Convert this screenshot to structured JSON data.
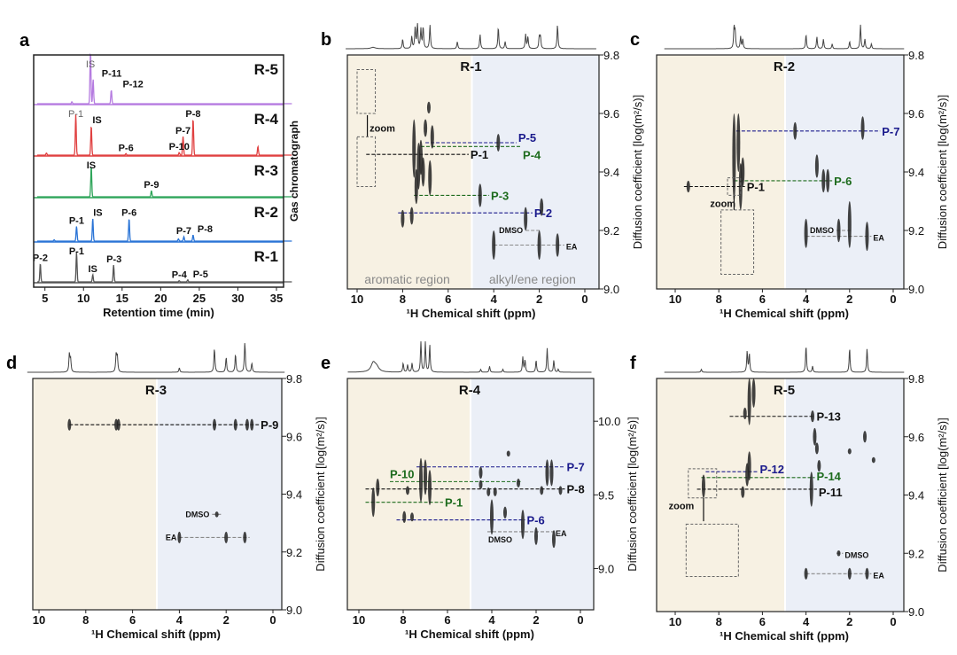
{
  "chart_data": [
    {
      "panel": "a",
      "type": "line",
      "xlabel": "Retention time (min)",
      "ylabel": "Gas chromatograph",
      "xlim": [
        4,
        37
      ],
      "xticks": [
        5,
        10,
        15,
        20,
        25,
        30,
        35
      ],
      "series": [
        {
          "name": "R-5",
          "color": "#b57be0",
          "peaks": [
            [
              10.9,
              1.1,
              "IS"
            ],
            [
              11.25,
              0.5,
              "P-11"
            ],
            [
              13.6,
              0.28,
              "P-12"
            ],
            [
              8.5,
              0.04,
              ""
            ]
          ]
        },
        {
          "name": "R-4",
          "color": "#e04040",
          "peaks": [
            [
              9.0,
              0.8,
              "P-1"
            ],
            [
              11.0,
              0.58,
              "IS"
            ],
            [
              15.5,
              0.03,
              "P-6"
            ],
            [
              22.4,
              0.05,
              "P-10"
            ],
            [
              22.9,
              0.37,
              "P-7"
            ],
            [
              24.2,
              0.72,
              "P-8"
            ],
            [
              32.6,
              0.17,
              ""
            ],
            [
              5.2,
              0.04,
              ""
            ]
          ]
        },
        {
          "name": "R-3",
          "color": "#2fa55a",
          "peaks": [
            [
              11.0,
              0.75,
              "IS"
            ],
            [
              18.8,
              0.15,
              "P-9"
            ]
          ]
        },
        {
          "name": "R-2",
          "color": "#2a74d6",
          "peaks": [
            [
              9.1,
              0.34,
              "P-1"
            ],
            [
              11.2,
              0.52,
              "IS"
            ],
            [
              15.9,
              0.52,
              "P-6"
            ],
            [
              22.3,
              0.05,
              ""
            ],
            [
              23.0,
              0.1,
              "P-7"
            ],
            [
              24.2,
              0.14,
              "P-8"
            ],
            [
              6.2,
              0.03,
              ""
            ]
          ]
        },
        {
          "name": "R-1",
          "color": "#555555",
          "peaks": [
            [
              4.4,
              0.46,
              "P-2"
            ],
            [
              9.1,
              0.74,
              "P-1"
            ],
            [
              11.2,
              0.18,
              "IS"
            ],
            [
              13.9,
              0.42,
              "P-3"
            ],
            [
              22.4,
              0.03,
              "P-4"
            ],
            [
              23.5,
              0.05,
              "P-5"
            ]
          ]
        }
      ]
    },
    {
      "panel": "b",
      "type": "scatter",
      "title": "R-1",
      "xlabel": "¹H Chemical shift (ppm)",
      "ylabel": "Diffusion coefficient [log(m²/s)]",
      "xlim": [
        10.5,
        -0.5
      ],
      "xticks": [
        10,
        8,
        6,
        4,
        2,
        0
      ],
      "ylim": [
        9.0,
        9.8
      ],
      "yticks": [
        "9.0",
        "9.2",
        "9.4",
        "9.6",
        "9.8"
      ],
      "region_labels": [
        "aromatic region",
        "alkyl/ene region"
      ],
      "zoom_label": "zoom",
      "spectrum": [
        [
          9.3,
          0.06
        ],
        [
          8.0,
          0.4
        ],
        [
          7.6,
          0.5
        ],
        [
          7.45,
          0.9
        ],
        [
          7.35,
          1
        ],
        [
          7.2,
          0.8
        ],
        [
          7.1,
          0.9
        ],
        [
          6.8,
          1
        ],
        [
          5.6,
          0.3
        ],
        [
          4.6,
          0.6
        ],
        [
          3.8,
          0.9
        ],
        [
          3.5,
          0.3
        ],
        [
          2.6,
          0.6
        ],
        [
          2.5,
          0.5
        ],
        [
          2.0,
          0.5
        ],
        [
          1.95,
          0.5
        ],
        [
          1.2,
          1
        ]
      ],
      "crosspeaks": [
        [
          8.0,
          9.24,
          0.03
        ],
        [
          7.6,
          9.25,
          0.03
        ],
        [
          7.5,
          9.48,
          0.1
        ],
        [
          7.4,
          9.35,
          0.06
        ],
        [
          7.3,
          9.42,
          0.08
        ],
        [
          7.2,
          9.45,
          0.06
        ],
        [
          7.1,
          9.4,
          0.05
        ],
        [
          7.0,
          9.55,
          0.03
        ],
        [
          6.8,
          9.38,
          0.06
        ],
        [
          6.7,
          9.52,
          0.04
        ],
        [
          6.85,
          9.62,
          0.02
        ],
        [
          4.6,
          9.32,
          0.04
        ],
        [
          3.8,
          9.5,
          0.03
        ],
        [
          2.6,
          9.24,
          0.04
        ],
        [
          1.9,
          9.28,
          0.03
        ],
        [
          4.0,
          9.15,
          0.05
        ],
        [
          2.0,
          9.15,
          0.05
        ],
        [
          1.2,
          9.15,
          0.04
        ]
      ],
      "lines": [
        {
          "label": "P-5",
          "color": "#1a1a8c",
          "logD": 9.5,
          "from": 7.0,
          "to": 3.0
        },
        {
          "label": "P-4",
          "color": "#1d6b1d",
          "logD": 9.487,
          "from": 7.2,
          "to": 2.8
        },
        {
          "label": "P-1",
          "color": "#111111",
          "logD": 9.46,
          "from": 9.6,
          "to": 5.1
        },
        {
          "label": "P-3",
          "color": "#1d6b1d",
          "logD": 9.32,
          "from": 7.5,
          "to": 4.2
        },
        {
          "label": "P-2",
          "color": "#1a1a8c",
          "logD": 9.26,
          "from": 8.2,
          "to": 2.3
        },
        {
          "label": "DMSO",
          "color": "#888888",
          "logD": 9.2,
          "from": 2.6,
          "to": 1.9,
          "side": "left",
          "small": true
        },
        {
          "label": "EA",
          "color": "#888888",
          "logD": 9.15,
          "from": 4.0,
          "to": 0.9,
          "small": true
        }
      ]
    },
    {
      "panel": "c",
      "type": "scatter",
      "title": "R-2",
      "xlabel": "¹H Chemical shift (ppm)",
      "ylabel": "Diffusion coefficient [log(m²/s)]",
      "xlim": [
        10.5,
        -0.5
      ],
      "xticks": [
        10,
        8,
        6,
        4,
        2,
        0
      ],
      "ylim": [
        9.0,
        9.8
      ],
      "yticks": [
        "9.0",
        "9.2",
        "9.4",
        "9.6",
        "9.8"
      ],
      "zoom_label": "zoom",
      "spectrum": [
        [
          7.3,
          0.9
        ],
        [
          7.25,
          0.7
        ],
        [
          7.0,
          0.5
        ],
        [
          6.9,
          0.4
        ],
        [
          4.0,
          0.6
        ],
        [
          3.5,
          0.5
        ],
        [
          3.2,
          0.4
        ],
        [
          2.8,
          0.2
        ],
        [
          2.0,
          0.3
        ],
        [
          1.5,
          1
        ],
        [
          1.3,
          0.4
        ],
        [
          1.0,
          0.2
        ]
      ],
      "crosspeaks": [
        [
          9.4,
          9.35,
          0.02
        ],
        [
          7.3,
          9.45,
          0.15
        ],
        [
          7.1,
          9.5,
          0.1
        ],
        [
          7.0,
          9.35,
          0.08
        ],
        [
          6.9,
          9.4,
          0.05
        ],
        [
          4.5,
          9.54,
          0.03
        ],
        [
          3.5,
          9.42,
          0.04
        ],
        [
          3.2,
          9.37,
          0.04
        ],
        [
          3.0,
          9.37,
          0.04
        ],
        [
          1.4,
          9.55,
          0.04
        ],
        [
          4.0,
          9.19,
          0.05
        ],
        [
          2.5,
          9.2,
          0.04
        ],
        [
          2.0,
          9.22,
          0.08
        ],
        [
          1.2,
          9.18,
          0.05
        ]
      ],
      "lines": [
        {
          "label": "P-7",
          "color": "#1a1a8c",
          "logD": 9.54,
          "from": 7.2,
          "to": 0.6
        },
        {
          "label": "P-6",
          "color": "#1d6b1d",
          "logD": 9.37,
          "from": 7.3,
          "to": 2.8
        },
        {
          "label": "P-1",
          "color": "#111111",
          "logD": 9.35,
          "from": 9.6,
          "to": 6.8
        },
        {
          "label": "DMSO",
          "color": "#888888",
          "logD": 9.2,
          "from": 2.6,
          "to": 1.9,
          "side": "left",
          "small": true
        },
        {
          "label": "EA",
          "color": "#888888",
          "logD": 9.18,
          "from": 4.0,
          "to": 1.0,
          "small": true
        }
      ]
    },
    {
      "panel": "d",
      "type": "scatter",
      "title": "R-3",
      "xlabel": "¹H Chemical shift (ppm)",
      "ylabel": "Diffusion coefficient [log(m²/s)]",
      "xlim": [
        10.5,
        -0.5
      ],
      "xticks": [
        10,
        8,
        6,
        4,
        2,
        0
      ],
      "ylim": [
        9.0,
        9.8
      ],
      "yticks": [
        "9.0",
        "9.2",
        "9.4",
        "9.6",
        "9.8"
      ],
      "spectrum": [
        [
          8.7,
          0.6
        ],
        [
          8.65,
          0.4
        ],
        [
          6.7,
          0.6
        ],
        [
          6.65,
          0.5
        ],
        [
          4.0,
          0.15
        ],
        [
          2.5,
          0.8
        ],
        [
          2.0,
          0.5
        ],
        [
          1.6,
          0.6
        ],
        [
          1.2,
          1
        ],
        [
          0.9,
          0.3
        ]
      ],
      "crosspeaks": [
        [
          8.7,
          9.64,
          0.02
        ],
        [
          6.7,
          9.64,
          0.02
        ],
        [
          6.6,
          9.64,
          0.02
        ],
        [
          2.5,
          9.64,
          0.02
        ],
        [
          1.6,
          9.64,
          0.02
        ],
        [
          1.1,
          9.64,
          0.02
        ],
        [
          0.9,
          9.64,
          0.02
        ],
        [
          2.4,
          9.33,
          0.01
        ],
        [
          4.0,
          9.25,
          0.02
        ],
        [
          2.0,
          9.25,
          0.02
        ],
        [
          1.2,
          9.25,
          0.02
        ]
      ],
      "lines": [
        {
          "label": "P-9",
          "color": "#111111",
          "logD": 9.64,
          "from": 8.7,
          "to": 0.6
        },
        {
          "label": "DMSO",
          "color": "#888888",
          "logD": 9.33,
          "from": 2.6,
          "to": 2.2,
          "side": "left",
          "small": true
        },
        {
          "label": "EA",
          "color": "#888888",
          "logD": 9.25,
          "from": 4.0,
          "to": 1.0,
          "side": "left",
          "small": true
        }
      ]
    },
    {
      "panel": "e",
      "type": "scatter",
      "title": "R-4",
      "xlabel": "¹H Chemical shift (ppm)",
      "ylabel": "Diffusion coefficient [log(m²/s)]",
      "xlim": [
        10.5,
        -0.5
      ],
      "xticks": [
        10,
        8,
        6,
        4,
        2,
        0
      ],
      "ylim": [
        8.72,
        10.29
      ],
      "yticks": [
        "9.0",
        "9.5",
        "10.0"
      ],
      "spectrum": [
        [
          9.35,
          0.3
        ],
        [
          9.2,
          0.15
        ],
        [
          8.0,
          0.3
        ],
        [
          7.8,
          0.25
        ],
        [
          7.6,
          0.3
        ],
        [
          7.2,
          1
        ],
        [
          7.0,
          1
        ],
        [
          6.8,
          0.9
        ],
        [
          4.5,
          0.1
        ],
        [
          4.1,
          0.2
        ],
        [
          3.5,
          0.1
        ],
        [
          2.6,
          0.5
        ],
        [
          2.5,
          0.4
        ],
        [
          2.0,
          0.4
        ],
        [
          1.5,
          0.8
        ],
        [
          1.2,
          0.4
        ],
        [
          1.0,
          0.1
        ]
      ],
      "crosspeaks": [
        [
          9.35,
          9.45,
          0.1
        ],
        [
          9.15,
          9.55,
          0.06
        ],
        [
          7.8,
          9.53,
          0.03
        ],
        [
          7.95,
          9.35,
          0.04
        ],
        [
          7.6,
          9.35,
          0.03
        ],
        [
          7.2,
          9.6,
          0.15
        ],
        [
          7.0,
          9.62,
          0.12
        ],
        [
          6.8,
          9.55,
          0.12
        ],
        [
          4.5,
          9.65,
          0.04
        ],
        [
          4.5,
          9.57,
          0.03
        ],
        [
          4.15,
          9.52,
          0.03
        ],
        [
          3.85,
          9.52,
          0.03
        ],
        [
          4.0,
          9.35,
          0.12
        ],
        [
          3.4,
          9.38,
          0.04
        ],
        [
          3.25,
          9.78,
          0.02
        ],
        [
          2.8,
          9.58,
          0.03
        ],
        [
          2.6,
          9.3,
          0.1
        ],
        [
          2.0,
          9.22,
          0.06
        ],
        [
          1.5,
          9.65,
          0.09
        ],
        [
          1.3,
          9.65,
          0.09
        ],
        [
          1.75,
          9.53,
          0.03
        ],
        [
          0.9,
          9.53,
          0.03
        ],
        [
          1.2,
          9.2,
          0.06
        ]
      ],
      "lines": [
        {
          "label": "P-7",
          "color": "#1a1a8c",
          "logD": 9.69,
          "from": 7.4,
          "to": 0.7
        },
        {
          "label": "P-10",
          "color": "#1d6b1d",
          "logD": 9.59,
          "from": 8.6,
          "to": 2.7,
          "side": "start"
        },
        {
          "label": "P-8",
          "color": "#111111",
          "logD": 9.54,
          "from": 9.7,
          "to": 0.7
        },
        {
          "label": "P-1",
          "color": "#1d6b1d",
          "logD": 9.45,
          "from": 9.7,
          "to": 6.2
        },
        {
          "label": "P-6",
          "color": "#1a1a8c",
          "logD": 9.33,
          "from": 8.3,
          "to": 2.5
        },
        {
          "label": "DMSO",
          "color": "#888888",
          "logD": 9.25,
          "from": 4.0,
          "to": 3.9,
          "side": "below",
          "small": true
        },
        {
          "label": "EA",
          "color": "#888888",
          "logD": 9.25,
          "from": 4.2,
          "to": 1.2,
          "small": true
        }
      ]
    },
    {
      "panel": "f",
      "type": "scatter",
      "title": "R-5",
      "xlabel": "¹H Chemical shift (ppm)",
      "ylabel": "Diffusion coefficient [log(m²/s)]",
      "xlim": [
        10.5,
        -0.5
      ],
      "xticks": [
        10,
        8,
        6,
        4,
        2,
        0
      ],
      "ylim": [
        9.0,
        9.8
      ],
      "yticks": [
        "9.0",
        "9.2",
        "9.4",
        "9.6",
        "9.8"
      ],
      "zoom_label": "zoom",
      "spectrum": [
        [
          8.8,
          0.1
        ],
        [
          6.7,
          0.7
        ],
        [
          6.6,
          0.6
        ],
        [
          4.0,
          0.9
        ],
        [
          3.7,
          0.2
        ],
        [
          2.0,
          0.8
        ],
        [
          1.2,
          0.8
        ]
      ],
      "crosspeaks": [
        [
          6.6,
          9.72,
          0.08
        ],
        [
          6.4,
          9.75,
          0.05
        ],
        [
          6.8,
          9.68,
          0.02
        ],
        [
          6.7,
          9.47,
          0.04
        ],
        [
          6.6,
          9.5,
          0.05
        ],
        [
          6.9,
          9.41,
          0.02
        ],
        [
          3.7,
          9.67,
          0.02
        ],
        [
          3.6,
          9.6,
          0.03
        ],
        [
          3.5,
          9.56,
          0.02
        ],
        [
          3.4,
          9.5,
          0.02
        ],
        [
          3.75,
          9.42,
          0.06
        ],
        [
          1.3,
          9.6,
          0.02
        ],
        [
          2.0,
          9.55,
          0.01
        ],
        [
          0.9,
          9.52,
          0.01
        ],
        [
          8.7,
          9.43,
          0.04
        ],
        [
          2.5,
          9.2,
          0.01
        ],
        [
          4.0,
          9.13,
          0.02
        ],
        [
          2.0,
          9.13,
          0.02
        ],
        [
          1.2,
          9.13,
          0.02
        ]
      ],
      "lines": [
        {
          "label": "P-13",
          "color": "#111111",
          "logD": 9.67,
          "from": 7.5,
          "to": 3.6
        },
        {
          "label": "P-12",
          "color": "#1a1a8c",
          "logD": 9.48,
          "from": 8.6,
          "to": 6.2
        },
        {
          "label": "P-14",
          "color": "#1d6b1d",
          "logD": 9.46,
          "from": 8.8,
          "to": 3.6
        },
        {
          "label": "P-11",
          "color": "#111111",
          "logD": 9.42,
          "from": 9.0,
          "to": 3.5
        },
        {
          "label": "DMSO",
          "color": "#888888",
          "logD": 9.2,
          "from": 2.6,
          "to": 2.3,
          "small": true
        },
        {
          "label": "EA",
          "color": "#888888",
          "logD": 9.13,
          "from": 4.0,
          "to": 1.0,
          "small": true
        }
      ]
    }
  ],
  "colors": {
    "aromatic_bg": "#f7f1e3",
    "alkyl_bg": "#ebeff7"
  }
}
